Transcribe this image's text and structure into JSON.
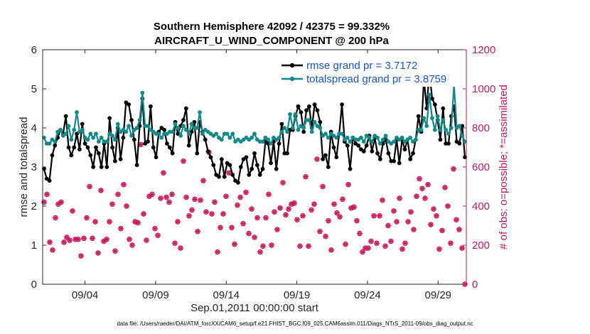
{
  "chart_data": {
    "type": "line",
    "title_line1": "Southern Hemisphere 42092 / 42375 = 99.332%",
    "title_line2": "AIRCRAFT_U_WIND_COMPONENT @ 200 hPa",
    "xlabel": "Sep.01,2011 00:00:00 start",
    "ylabel_left": "rmse and totalspread",
    "ylabel_right": "# of obs: o=possible; *=assimilated",
    "xlim": [
      1.0,
      31.0
    ],
    "ylim_left": [
      0,
      6
    ],
    "ylim_right": [
      0,
      1200
    ],
    "x_ticks": [
      {
        "label": "09/04",
        "value": 4.0
      },
      {
        "label": "09/09",
        "value": 9.0
      },
      {
        "label": "09/14",
        "value": 14.0
      },
      {
        "label": "09/19",
        "value": 19.0
      },
      {
        "label": "09/24",
        "value": 24.0
      },
      {
        "label": "09/29",
        "value": 29.0
      }
    ],
    "y_ticks_left": [
      "0",
      "1",
      "2",
      "3",
      "4",
      "5",
      "6"
    ],
    "y_ticks_right": [
      "0",
      "200",
      "400",
      "600",
      "800",
      "1000",
      "1200"
    ],
    "legend_position": "top-right",
    "series": [
      {
        "name": "rmse grand pr = 3.7172",
        "color": "#000000",
        "axis": "left",
        "values": [
          2.95,
          2.7,
          2.65,
          3.3,
          3.55,
          3.75,
          3.95,
          3.85,
          4.3,
          3.5,
          3.3,
          3.5,
          3.85,
          3.45,
          4.1,
          3.6,
          3.5,
          3.3,
          3.0,
          3.5,
          3.35,
          3.0,
          3.6,
          3.0,
          4.25,
          3.5,
          3.15,
          4.0,
          3.2,
          3.75,
          4.65,
          4.6,
          4.2,
          3.7,
          3.05,
          4.05,
          4.75,
          3.6,
          3.65,
          4.55,
          3.5,
          3.25,
          3.9,
          4.0,
          3.95,
          3.6,
          3.5,
          3.35,
          4.15,
          3.85,
          4.05,
          4.2,
          4.5,
          3.55,
          3.9,
          4.15,
          3.35,
          4.15,
          3.9,
          3.7,
          3.4,
          3.25,
          3.05,
          2.8,
          2.75,
          3.2,
          2.75,
          3.1,
          3.05,
          2.8,
          2.65,
          2.6,
          3.0,
          3.2,
          3.25,
          2.8,
          2.95,
          3.35,
          3.05,
          2.8,
          2.95,
          3.65,
          3.6,
          3.1,
          3.65,
          2.95,
          3.6,
          4.1,
          3.35,
          3.35,
          3.95,
          3.95,
          4.3,
          4.55,
          4.4,
          3.9,
          4.45,
          4.55,
          4.0,
          4.6,
          4.45,
          4.15,
          3.2,
          3.3,
          3.0,
          3.9,
          3.5,
          3.25,
          3.85,
          4.6,
          3.65,
          3.55,
          2.95,
          3.75,
          3.6,
          3.55,
          3.45,
          3.4,
          3.55,
          3.8,
          3.4,
          3.75,
          3.35,
          3.2,
          3.6,
          3.7,
          3.35,
          3.15,
          3.15,
          3.7,
          3.1,
          3.7,
          3.45,
          3.7,
          3.2,
          3.35,
          3.7,
          4.3,
          3.9,
          5.25,
          4.5,
          5.45,
          4.75,
          4.6,
          4.2,
          3.7,
          4.5,
          3.6,
          3.6,
          4.3,
          4.55,
          3.65,
          3.6,
          4.05,
          3.25
        ]
      },
      {
        "name": "totalspread grand pr = 3.8759",
        "color": "#138a8a",
        "axis": "left",
        "values": [
          3.75,
          3.6,
          3.6,
          3.7,
          3.65,
          3.9,
          3.95,
          3.8,
          3.85,
          4.05,
          3.7,
          3.95,
          4.4,
          3.9,
          3.95,
          3.75,
          3.7,
          3.85,
          3.75,
          3.85,
          3.65,
          3.75,
          3.65,
          3.65,
          3.85,
          3.8,
          3.7,
          4.1,
          3.9,
          3.95,
          3.9,
          4.05,
          3.8,
          3.95,
          4.0,
          4.2,
          4.9,
          4.05,
          4.05,
          3.95,
          3.9,
          3.85,
          3.85,
          3.75,
          3.85,
          3.85,
          3.9,
          3.9,
          4.1,
          4.0,
          3.8,
          4.05,
          3.95,
          3.85,
          4.1,
          4.0,
          4.0,
          4.4,
          3.85,
          3.95,
          3.9,
          3.85,
          3.8,
          3.85,
          3.75,
          3.7,
          3.85,
          3.85,
          3.75,
          3.85,
          3.65,
          3.7,
          3.65,
          3.7,
          3.75,
          3.7,
          3.75,
          3.85,
          3.7,
          3.65,
          3.65,
          3.75,
          3.7,
          3.6,
          3.75,
          3.7,
          3.75,
          3.9,
          4.0,
          3.9,
          4.35,
          4.0,
          4.35,
          3.95,
          4.05,
          4.0,
          4.2,
          4.2,
          3.9,
          4.15,
          4.05,
          4.0,
          3.8,
          3.85,
          3.75,
          3.85,
          3.8,
          3.75,
          3.85,
          3.85,
          3.7,
          3.75,
          3.65,
          3.75,
          3.7,
          3.7,
          3.75,
          3.65,
          3.8,
          3.75,
          3.65,
          3.8,
          3.75,
          3.6,
          3.7,
          3.8,
          3.65,
          3.6,
          3.65,
          3.75,
          3.7,
          3.75,
          3.65,
          3.7,
          3.75,
          3.65,
          3.7,
          3.95,
          3.95,
          4.25,
          4.05,
          4.85,
          4.25,
          3.95,
          4.3,
          3.95,
          4.2,
          3.95,
          3.85,
          4.0,
          5.1,
          4.0,
          4.05,
          3.8,
          3.65
        ]
      },
      {
        "name": "obs possible",
        "color": "#c8175c",
        "axis": "right",
        "marker": "o",
        "values": [
          420,
          460,
          215,
          175,
          340,
          410,
          420,
          215,
          240,
          225,
          375,
          230,
          230,
          145,
          235,
          340,
          500,
          235,
          320,
          160,
          480,
          220,
          230,
          320,
          410,
          170,
          460,
          285,
          510,
          400,
          230,
          200,
          320,
          315,
          715,
          360,
          225,
          450,
          460,
          285,
          250,
          440,
          570,
          445,
          420,
          460,
          210,
          320,
          185,
          630,
          445,
          350,
          380,
          435,
          270,
          430,
          530,
          370,
          675,
          360,
          420,
          165,
          290,
          360,
          450,
          570,
          290,
          205,
          405,
          445,
          310,
          470,
          260,
          385,
          240,
          340,
          165,
          195,
          340,
          460,
          200,
          370,
          280,
          390,
          520,
          355,
          385,
          410,
          415,
          330,
          195,
          350,
          550,
          195,
          380,
          410,
          640,
          270,
          500,
          245,
          325,
          175,
          410,
          365,
          345,
          435,
          205,
          510,
          390,
          395,
          325,
          260,
          165,
          185,
          185,
          220,
          350,
          210,
          350,
          430,
          195,
          300,
          220,
          375,
          320,
          440,
          180,
          210,
          320,
          370,
          280,
          450,
          540,
          490,
          440,
          510,
          305,
          385,
          350,
          180,
          275,
          495,
          400,
          210,
          590,
          330,
          280,
          185,
          0
        ]
      },
      {
        "name": "obs assimilated",
        "color": "#c8175c",
        "axis": "right",
        "marker": "*",
        "values": [
          420,
          460,
          215,
          175,
          340,
          410,
          420,
          215,
          240,
          225,
          375,
          230,
          230,
          145,
          235,
          340,
          500,
          235,
          320,
          160,
          480,
          220,
          230,
          320,
          410,
          170,
          460,
          285,
          510,
          400,
          230,
          200,
          320,
          315,
          715,
          360,
          225,
          450,
          460,
          285,
          250,
          440,
          570,
          445,
          420,
          460,
          210,
          320,
          185,
          630,
          445,
          350,
          380,
          435,
          270,
          430,
          530,
          370,
          675,
          360,
          420,
          165,
          290,
          360,
          450,
          570,
          290,
          205,
          405,
          445,
          310,
          470,
          260,
          385,
          240,
          340,
          165,
          195,
          340,
          460,
          200,
          370,
          280,
          390,
          520,
          355,
          385,
          410,
          415,
          330,
          195,
          350,
          550,
          195,
          380,
          410,
          640,
          270,
          500,
          245,
          325,
          175,
          410,
          365,
          345,
          435,
          205,
          510,
          390,
          395,
          325,
          260,
          165,
          185,
          185,
          220,
          350,
          210,
          350,
          430,
          195,
          300,
          220,
          375,
          320,
          440,
          180,
          210,
          320,
          370,
          280,
          450,
          540,
          490,
          440,
          510,
          305,
          385,
          350,
          180,
          275,
          495,
          400,
          210,
          590,
          330,
          280,
          185,
          0
        ]
      }
    ]
  },
  "footer": "data file: /Users/raeder/DAI/ATM_forcXX/CAM6_setup/f.e21.FHIST_BGC.f09_025.CAM6assim.011/Diags_NTrS_2011-09/obs_diag_output.nc"
}
